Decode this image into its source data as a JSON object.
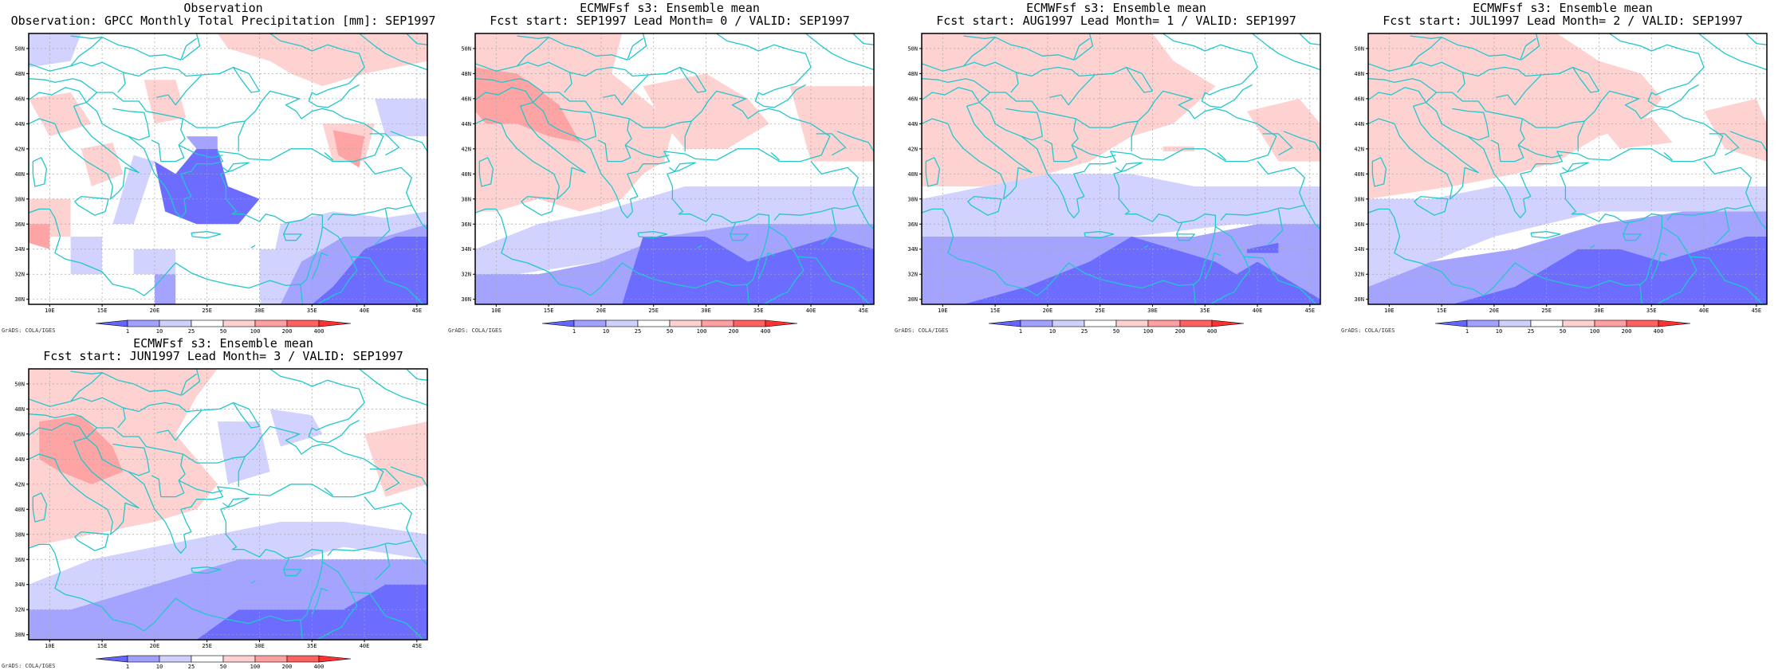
{
  "panels": [
    {
      "title1": "Observation",
      "title2": "Observation: GPCC Monthly Total Precipitation [mm]: SEP1997",
      "field": "obs"
    },
    {
      "title1": "ECMWFsf s3: Ensemble mean",
      "title2": "Fcst start: SEP1997  Lead Month= 0 / VALID: SEP1997",
      "field": "lead0"
    },
    {
      "title1": "ECMWFsf s3: Ensemble mean",
      "title2": "Fcst start: AUG1997  Lead Month= 1 / VALID: SEP1997",
      "field": "lead1"
    },
    {
      "title1": "ECMWFsf s3: Ensemble mean",
      "title2": "Fcst start: JUL1997  Lead Month= 2 / VALID: SEP1997",
      "field": "lead2"
    },
    {
      "title1": "ECMWFsf s3: Ensemble mean",
      "title2": "Fcst start: JUN1997  Lead Month= 3 / VALID: SEP1997",
      "field": "lead3"
    }
  ],
  "axes": {
    "lon_ticks": [
      10,
      15,
      20,
      25,
      30,
      35,
      40,
      45
    ],
    "lon_labels": [
      "10E",
      "15E",
      "20E",
      "25E",
      "30E",
      "35E",
      "40E",
      "45E"
    ],
    "lat_ticks": [
      30,
      32,
      34,
      36,
      38,
      40,
      42,
      44,
      46,
      48,
      50
    ],
    "lat_labels": [
      "30N",
      "32N",
      "34N",
      "36N",
      "38N",
      "40N",
      "42N",
      "44N",
      "46N",
      "48N",
      "50N"
    ],
    "lon_range": [
      8,
      46
    ],
    "lat_range": [
      29.6,
      51.2
    ]
  },
  "colorbar": {
    "labels": [
      "1",
      "10",
      "25",
      "50",
      "100",
      "200",
      "400"
    ],
    "colors": [
      "#6666ff",
      "#a0a0ff",
      "#d0d0ff",
      "#ffffff",
      "#ffd0d0",
      "#ffa0a0",
      "#ff6060",
      "#ff3030"
    ]
  },
  "credit": "GrADS: COLA/IGES",
  "colors": {
    "coast": "#22c7cc",
    "grid": "#a6a6a6",
    "deep_blue": "#6c6cff",
    "mid_blue": "#a4a4ff",
    "light_blue": "#d2d2ff",
    "light_red": "#ffd2d2",
    "mid_red": "#ffa4a4"
  }
}
